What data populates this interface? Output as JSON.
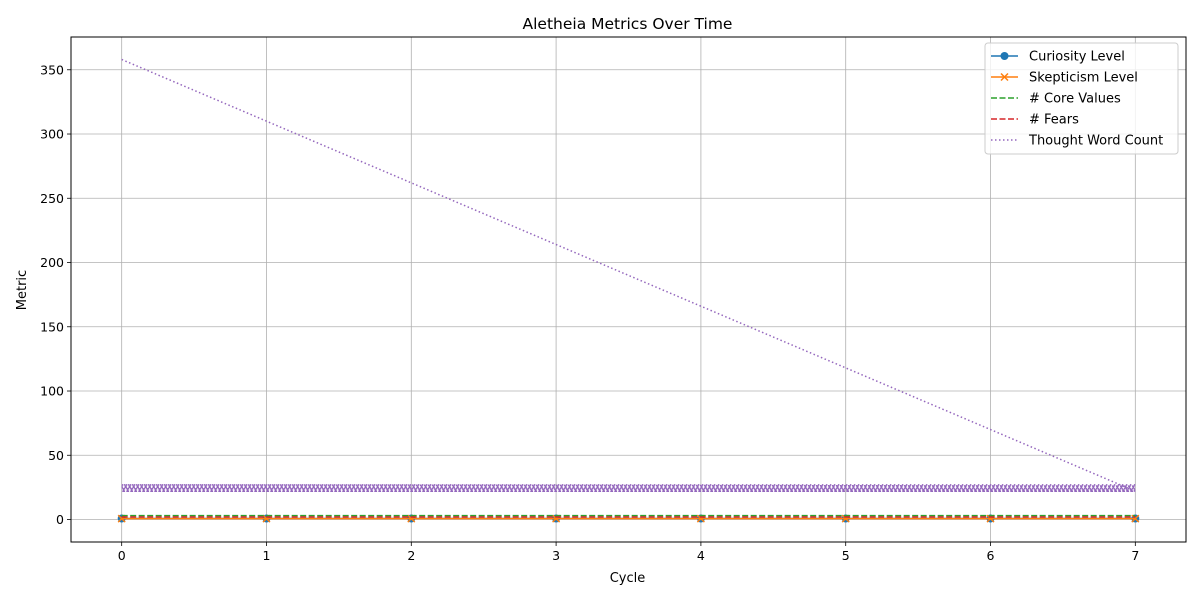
{
  "chart_data": {
    "type": "line",
    "title": "Aletheia Metrics Over Time",
    "xlabel": "Cycle",
    "ylabel": "Metric",
    "xlim": [
      -0.35,
      7.35
    ],
    "ylim": [
      -17.5,
      375.5
    ],
    "xticks": [
      0,
      1,
      2,
      3,
      4,
      5,
      6,
      7
    ],
    "yticks": [
      0,
      50,
      100,
      150,
      200,
      250,
      300,
      350
    ],
    "grid": true,
    "legend_position": "top-right",
    "x": [
      0,
      1,
      2,
      3,
      4,
      5,
      6,
      7
    ],
    "series": [
      {
        "name": "Curiosity Level",
        "color": "#1f77b4",
        "style": "solid",
        "marker": "circle",
        "values": [
          0.8,
          0.8,
          0.8,
          0.8,
          0.8,
          0.8,
          0.8,
          0.8
        ]
      },
      {
        "name": "Skepticism Level",
        "color": "#ff7f0e",
        "style": "solid",
        "marker": "x",
        "values": [
          0.7,
          0.7,
          0.7,
          0.7,
          0.7,
          0.7,
          0.7,
          0.7
        ]
      },
      {
        "name": "# Core Values",
        "color": "#2ca02c",
        "style": "dashed",
        "marker": "none",
        "values": [
          3,
          3,
          3,
          3,
          3,
          3,
          3,
          3
        ]
      },
      {
        "name": "# Fears",
        "color": "#d62728",
        "style": "dashed",
        "marker": "none",
        "values": [
          2,
          2,
          2,
          2,
          2,
          2,
          2,
          2
        ]
      },
      {
        "name": "Thought Word Count",
        "color": "#9467bd",
        "style": "dotted",
        "marker": "none",
        "points": [
          [
            0,
            358
          ],
          [
            7,
            22
          ],
          [
            0,
            22
          ],
          [
            7,
            22
          ],
          [
            0,
            23
          ],
          [
            7,
            23
          ],
          [
            0,
            24
          ],
          [
            7,
            24
          ],
          [
            0,
            25
          ],
          [
            7,
            25
          ],
          [
            0,
            26
          ],
          [
            7,
            26
          ],
          [
            0,
            27
          ],
          [
            7,
            27
          ]
        ]
      }
    ]
  }
}
